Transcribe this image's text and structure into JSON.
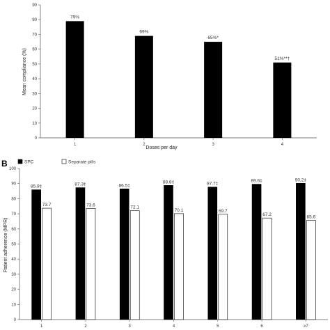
{
  "figure": {
    "panel_b_letter": "B"
  },
  "chart_data": [
    {
      "type": "bar",
      "categories": [
        "1",
        "2",
        "3",
        "4"
      ],
      "values": [
        79,
        69,
        65,
        51
      ],
      "data_labels": [
        "79%",
        "69%",
        "65%*",
        "51%**†"
      ],
      "xlabel": "Doses per day",
      "ylabel": "Mean compliance (%)",
      "ylim": [
        0,
        90
      ],
      "yticks": [
        0,
        10,
        20,
        30,
        40,
        50,
        60,
        70,
        80,
        90
      ],
      "grid": false,
      "colors": [
        "#000000"
      ]
    },
    {
      "type": "bar",
      "categories": [
        "1",
        "2",
        "3",
        "4",
        "5",
        "6",
        "≥7"
      ],
      "series": [
        {
          "name": "SPC",
          "values": [
            85.9,
            87.3,
            86.5,
            88.8,
            87.7,
            89.6,
            90.2
          ],
          "data_labels": [
            "85.9‡",
            "87.3‡",
            "86.5‡",
            "88.8‡",
            "87.7‡",
            "89.6‡",
            "90.2‡"
          ],
          "color": "#000000"
        },
        {
          "name": "Separate pills",
          "values": [
            73.7,
            73.6,
            72.1,
            70.1,
            69.7,
            67.2,
            65.6
          ],
          "data_labels": [
            "73.7",
            "73.6",
            "72.1",
            "70.1",
            "69.7",
            "67.2",
            "65.6"
          ],
          "color": "#ffffff"
        }
      ],
      "xlabel": "",
      "ylabel": "Patient adherence (MPR)",
      "ylim": [
        0,
        100
      ],
      "yticks": [
        0,
        10,
        20,
        30,
        40,
        50,
        60,
        70,
        80,
        90,
        100
      ],
      "grid": false,
      "legend": "top-left"
    }
  ]
}
